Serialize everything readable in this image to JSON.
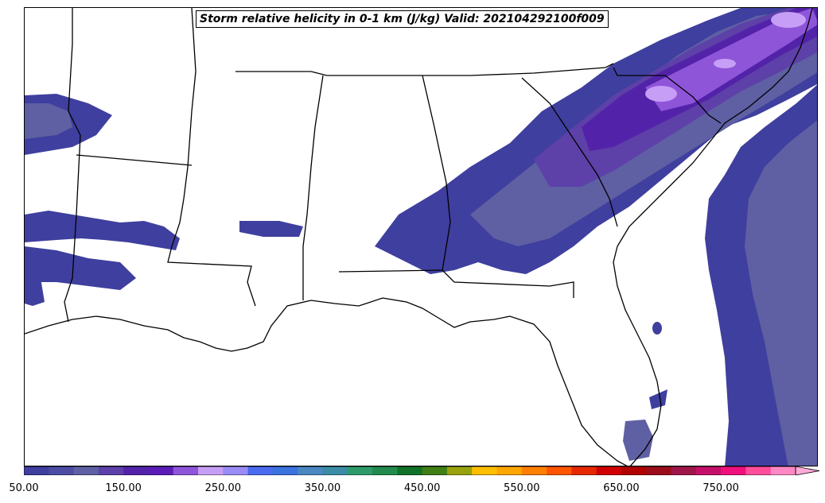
{
  "title": "Storm relative helicity in 0-1 km (J/kg) Valid: 202104292100f009",
  "colorbar": {
    "min": 50,
    "max": 825,
    "step": 25,
    "extend": "max",
    "tick_labels": [
      "50.00",
      "150.00",
      "250.00",
      "350.00",
      "450.00",
      "550.00",
      "650.00",
      "750.00"
    ],
    "tick_values": [
      50,
      150,
      250,
      350,
      450,
      550,
      650,
      750
    ],
    "colors": [
      "#3f3f9f",
      "#4c4ca3",
      "#5f5fa3",
      "#5d40a8",
      "#5223a9",
      "#5b1cb7",
      "#8e55d9",
      "#c79ef5",
      "#9a8cf5",
      "#4a6bf0",
      "#3a72de",
      "#4a87c3",
      "#3c8ba6",
      "#2e9a6b",
      "#228a4e",
      "#107228",
      "#3f7f14",
      "#98a20c",
      "#ffbf00",
      "#ffa600",
      "#ff7f00",
      "#ff5500",
      "#e62800",
      "#d00000",
      "#b00000",
      "#9b0d1a",
      "#a0154a",
      "#c4106a",
      "#f0107c",
      "#ff4d9c",
      "#ff88c4"
    ],
    "extend_color": "#ffaad6"
  },
  "map": {
    "region": "Southeastern United States",
    "field": "storm relative helicity 0-1 km",
    "units": "J/kg",
    "valid_time": "202104292100",
    "forecast_hour": "f009"
  }
}
